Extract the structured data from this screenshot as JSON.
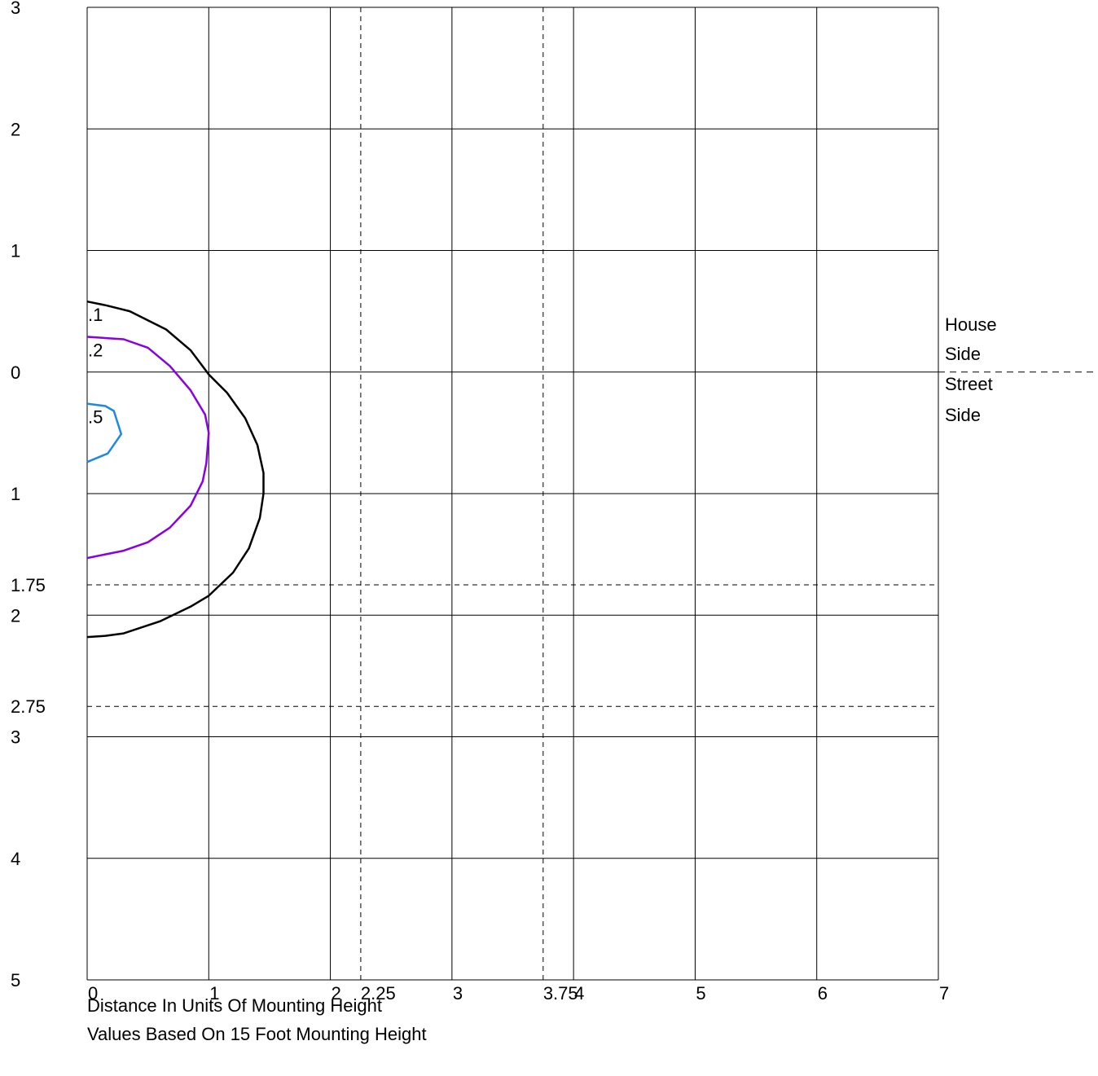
{
  "chart_data": {
    "type": "line",
    "title": "",
    "captions": [
      "Distance In Units Of Mounting Height",
      "Values Based On 15 Foot Mounting Height"
    ],
    "side_labels": {
      "house": [
        "House",
        "Side"
      ],
      "street": [
        "Street",
        "Side"
      ]
    },
    "xlim": [
      0,
      7
    ],
    "ylim": [
      -3,
      5
    ],
    "x_ticks": [
      0,
      1,
      2,
      3,
      4,
      5,
      6,
      7
    ],
    "x_tick_labels": [
      "0",
      "1",
      "2",
      "3",
      "4",
      "5",
      "6",
      "7"
    ],
    "y_ticks": [
      -3,
      -2,
      -1,
      0,
      1,
      2,
      3,
      4,
      5
    ],
    "y_tick_labels": [
      "3",
      "2",
      "1",
      "0",
      "1",
      "2",
      "3",
      "4",
      "5"
    ],
    "x_reference_lines": [
      2.25,
      3.75
    ],
    "x_reference_labels": [
      "2.25",
      "3.75"
    ],
    "y_reference_lines": [
      1.75,
      2.75
    ],
    "y_reference_labels": [
      "1.75",
      "2.75"
    ],
    "grid": true,
    "series": [
      {
        "name": ".1",
        "color": "#000000",
        "points": [
          [
            0,
            -0.58
          ],
          [
            0.15,
            -0.55
          ],
          [
            0.35,
            -0.5
          ],
          [
            0.65,
            -0.35
          ],
          [
            0.85,
            -0.18
          ],
          [
            1.0,
            0.02
          ],
          [
            1.15,
            0.17
          ],
          [
            1.3,
            0.38
          ],
          [
            1.4,
            0.6
          ],
          [
            1.45,
            0.83
          ],
          [
            1.45,
            1.0
          ],
          [
            1.42,
            1.2
          ],
          [
            1.33,
            1.45
          ],
          [
            1.2,
            1.65
          ],
          [
            1.0,
            1.84
          ],
          [
            0.85,
            1.93
          ],
          [
            0.6,
            2.05
          ],
          [
            0.3,
            2.15
          ],
          [
            0.15,
            2.17
          ],
          [
            0,
            2.18
          ]
        ]
      },
      {
        "name": ".2",
        "color": "#8a00e6",
        "points": [
          [
            0,
            -0.29
          ],
          [
            0.3,
            -0.27
          ],
          [
            0.5,
            -0.2
          ],
          [
            0.68,
            -0.05
          ],
          [
            0.85,
            0.15
          ],
          [
            0.97,
            0.35
          ],
          [
            1.0,
            0.5
          ],
          [
            0.98,
            0.75
          ],
          [
            0.95,
            0.9
          ],
          [
            0.85,
            1.1
          ],
          [
            0.68,
            1.28
          ],
          [
            0.5,
            1.4
          ],
          [
            0.3,
            1.47
          ],
          [
            0,
            1.53
          ]
        ]
      },
      {
        "name": ".5",
        "color": "#1e88e5",
        "points": [
          [
            0,
            0.26
          ],
          [
            0.15,
            0.28
          ],
          [
            0.22,
            0.32
          ],
          [
            0.28,
            0.51
          ],
          [
            0.17,
            0.67
          ],
          [
            0,
            0.74
          ]
        ]
      }
    ]
  }
}
